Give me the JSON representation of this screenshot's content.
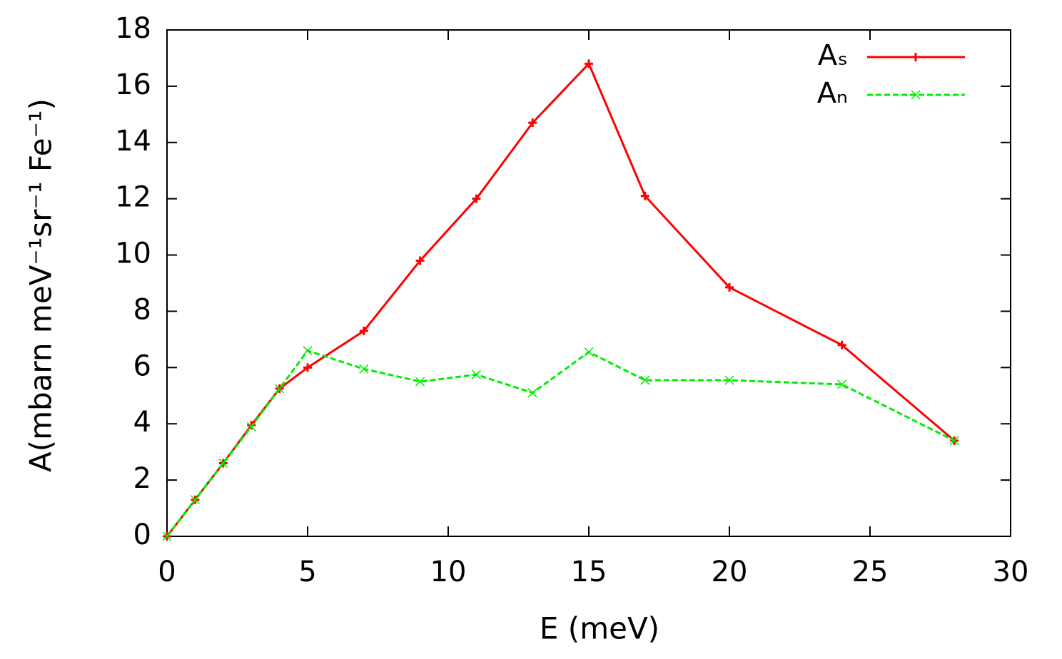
{
  "chart_data": {
    "type": "line",
    "x_label": "E (meV)",
    "y_label": "A(mbarn meV⁻¹sr⁻¹ Fe⁻¹)",
    "x": [
      0,
      1,
      2,
      3,
      4,
      5,
      7,
      9,
      11,
      13,
      15,
      17,
      20,
      24,
      28
    ],
    "series": [
      {
        "name": "Aₛ",
        "color": "#ff0000",
        "marker": "plus",
        "dash": false,
        "values": [
          0,
          1.3,
          2.6,
          3.95,
          5.25,
          6.0,
          7.3,
          9.8,
          12.0,
          14.7,
          16.8,
          12.1,
          8.85,
          6.8,
          3.4
        ]
      },
      {
        "name": "Aₙ",
        "color": "#00ee00",
        "marker": "cross",
        "dash": true,
        "values": [
          0,
          1.3,
          2.6,
          3.9,
          5.25,
          6.6,
          5.95,
          5.5,
          5.75,
          5.1,
          6.55,
          5.55,
          5.55,
          5.4,
          3.4
        ]
      }
    ],
    "xlim": [
      0,
      30
    ],
    "ylim": [
      0,
      18
    ],
    "xticks": [
      0,
      5,
      10,
      15,
      20,
      25,
      30
    ],
    "yticks": [
      0,
      2,
      4,
      6,
      8,
      10,
      12,
      14,
      16,
      18
    ],
    "legend": "upper-right",
    "grid": false
  }
}
